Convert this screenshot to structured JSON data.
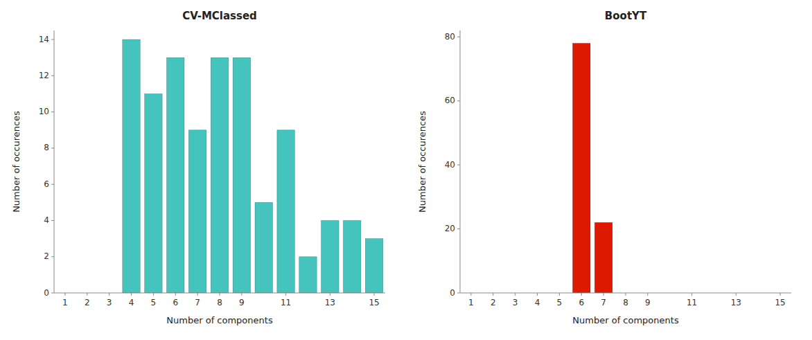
{
  "chart_data": [
    {
      "type": "bar",
      "title": "CV-MClassed",
      "xlabel": "Number of components",
      "ylabel": "Number of occurences",
      "x": [
        4,
        5,
        6,
        7,
        8,
        9,
        10,
        11,
        12,
        13,
        14,
        15
      ],
      "values": [
        14,
        11,
        13,
        9,
        13,
        13,
        5,
        9,
        2,
        4,
        4,
        3
      ],
      "color": "#45C4BE",
      "xlim": [
        0.5,
        15.5
      ],
      "xticks": [
        1,
        2,
        3,
        4,
        5,
        6,
        7,
        8,
        9,
        11,
        13,
        15
      ],
      "ylim": [
        0,
        14.5
      ],
      "yticks": [
        0,
        2,
        4,
        6,
        8,
        10,
        12,
        14
      ],
      "grid": false
    },
    {
      "type": "bar",
      "title": "BootYT",
      "xlabel": "Number of components",
      "ylabel": "Number of occurences",
      "x": [
        6,
        7
      ],
      "values": [
        78,
        22
      ],
      "color": "#DD1A00",
      "xlim": [
        0.5,
        15.5
      ],
      "xticks": [
        1,
        2,
        3,
        4,
        5,
        6,
        7,
        8,
        9,
        11,
        13,
        15
      ],
      "ylim": [
        0,
        82
      ],
      "yticks": [
        0,
        20,
        40,
        60,
        80
      ],
      "grid": false
    }
  ]
}
